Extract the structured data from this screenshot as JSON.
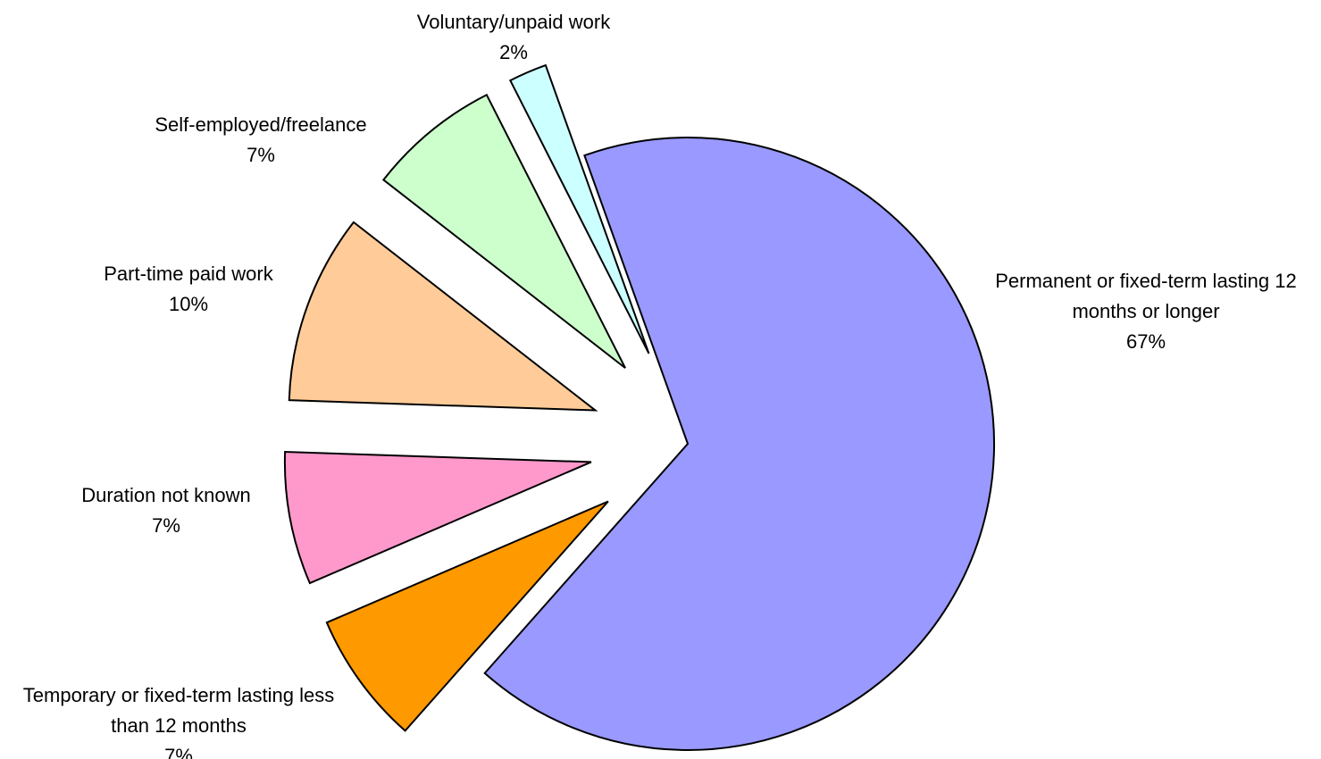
{
  "chart_data": {
    "type": "pie",
    "categories": [
      "Permanent or fixed-term lasting 12 months or longer",
      "Temporary or fixed-term lasting less than 12 months",
      "Duration not known",
      "Part-time paid work",
      "Self-employed/freelance",
      "Voluntary/unpaid work"
    ],
    "values": [
      67,
      7,
      7,
      10,
      7,
      2
    ],
    "value_labels": [
      "67%",
      "7%",
      "7%",
      "10%",
      "7%",
      "2%"
    ],
    "colors": [
      "#9999ff",
      "#ff9900",
      "#ff99cc",
      "#ffcc99",
      "#ccffcc",
      "#ccffff"
    ]
  }
}
